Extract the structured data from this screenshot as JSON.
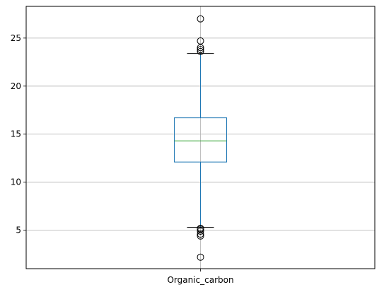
{
  "chart_data": {
    "type": "boxplot",
    "categories": [
      "Organic_carbon"
    ],
    "box": {
      "whisker_low": 5.3,
      "q1": 12.1,
      "median": 14.3,
      "q3": 16.7,
      "whisker_high": 23.4
    },
    "outliers": [
      2.2,
      4.4,
      4.6,
      4.9,
      5.1,
      5.2,
      23.6,
      23.8,
      24.0,
      24.7,
      27.0
    ],
    "ylim": [
      1.0,
      28.3
    ],
    "yticks": [
      5,
      10,
      15,
      20,
      25
    ],
    "grid": true,
    "colors": {
      "box": "#1f77b4",
      "median": "#2ca02c",
      "whisker_cap": "#000000",
      "grid": "#b0b0b0"
    }
  }
}
